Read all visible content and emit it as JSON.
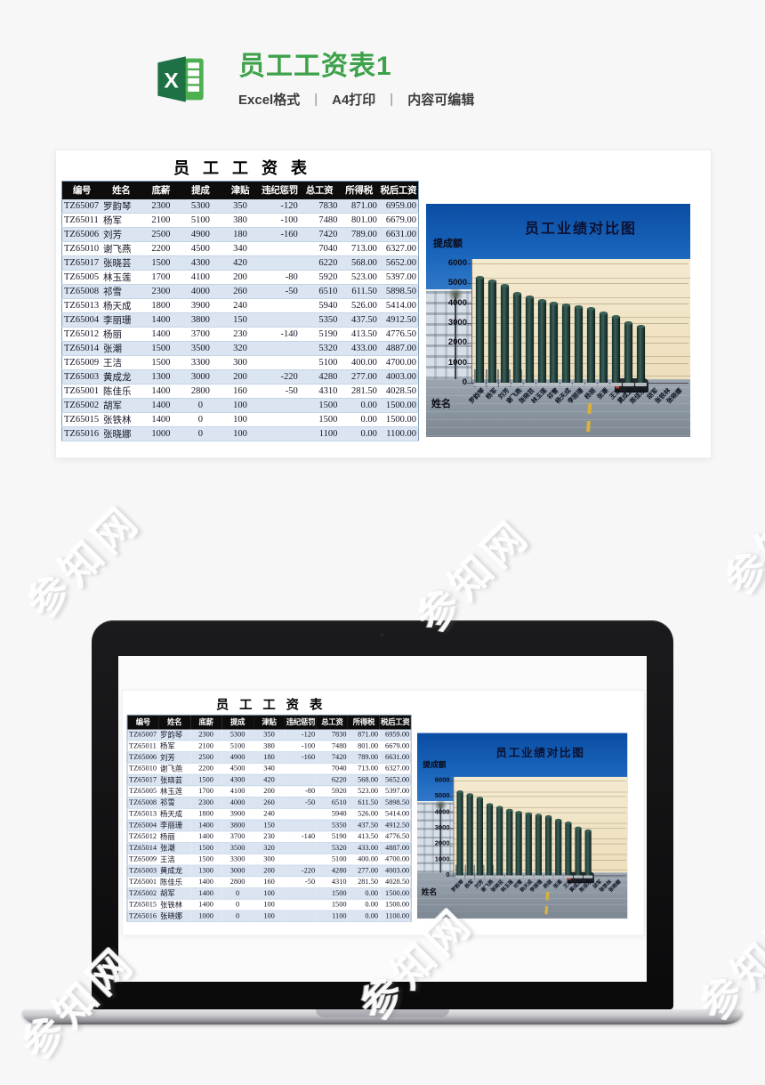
{
  "page": {
    "watermark_text": "参知网",
    "background": "#f7f7f8"
  },
  "header": {
    "title": "员工工资表1",
    "title_color": "#3ea24b",
    "subtitle_parts": [
      "Excel格式",
      "A4打印",
      "内容可编辑"
    ],
    "separator": "|",
    "excel_icon": "excel-logo"
  },
  "sheet": {
    "title": "员工工资表",
    "columns": [
      "编号",
      "姓名",
      "底薪",
      "提成",
      "津贴",
      "违纪惩罚",
      "总工资",
      "所得税",
      "税后工资"
    ],
    "header_bg": "#0d0d0d",
    "row_alt_bg": "#dbe5f1",
    "rows": [
      [
        "TZ65007",
        "罗韵琴",
        "2300",
        "5300",
        "350",
        "-120",
        "7830",
        "871.00",
        "6959.00"
      ],
      [
        "TZ65011",
        "杨军",
        "2100",
        "5100",
        "380",
        "-100",
        "7480",
        "801.00",
        "6679.00"
      ],
      [
        "TZ65006",
        "刘芳",
        "2500",
        "4900",
        "180",
        "-160",
        "7420",
        "789.00",
        "6631.00"
      ],
      [
        "TZ65010",
        "谢飞燕",
        "2200",
        "4500",
        "340",
        "",
        "7040",
        "713.00",
        "6327.00"
      ],
      [
        "TZ65017",
        "张晓芸",
        "1500",
        "4300",
        "420",
        "",
        "6220",
        "568.00",
        "5652.00"
      ],
      [
        "TZ65005",
        "林玉莲",
        "1700",
        "4100",
        "200",
        "-80",
        "5920",
        "523.00",
        "5397.00"
      ],
      [
        "TZ65008",
        "祁雪",
        "2300",
        "4000",
        "260",
        "-50",
        "6510",
        "611.50",
        "5898.50"
      ],
      [
        "TZ65013",
        "杨天成",
        "1800",
        "3900",
        "240",
        "",
        "5940",
        "526.00",
        "5414.00"
      ],
      [
        "TZ65004",
        "李丽珊",
        "1400",
        "3800",
        "150",
        "",
        "5350",
        "437.50",
        "4912.50"
      ],
      [
        "TZ65012",
        "杨丽",
        "1400",
        "3700",
        "230",
        "-140",
        "5190",
        "413.50",
        "4776.50"
      ],
      [
        "TZ65014",
        "张潮",
        "1500",
        "3500",
        "320",
        "",
        "5320",
        "433.00",
        "4887.00"
      ],
      [
        "TZ65009",
        "王洁",
        "1500",
        "3300",
        "300",
        "",
        "5100",
        "400.00",
        "4700.00"
      ],
      [
        "TZ65003",
        "黄成龙",
        "1300",
        "3000",
        "200",
        "-220",
        "4280",
        "277.00",
        "4003.00"
      ],
      [
        "TZ65001",
        "陈佳乐",
        "1400",
        "2800",
        "160",
        "-50",
        "4310",
        "281.50",
        "4028.50"
      ],
      [
        "TZ65002",
        "胡军",
        "1400",
        "0",
        "100",
        "",
        "1500",
        "0.00",
        "1500.00"
      ],
      [
        "TZ65015",
        "张铁林",
        "1400",
        "0",
        "100",
        "",
        "1500",
        "0.00",
        "1500.00"
      ],
      [
        "TZ65016",
        "张晓娜",
        "1000",
        "0",
        "100",
        "",
        "1100",
        "0.00",
        "1100.00"
      ]
    ]
  },
  "chart_data": {
    "type": "bar",
    "title": "员工业绩对比图",
    "ylabel": "提成额",
    "xlabel": "姓名",
    "categories": [
      "罗韵琴",
      "杨军",
      "刘芳",
      "谢飞燕",
      "张晓芸",
      "林玉莲",
      "祁雪",
      "杨天成",
      "李丽珊",
      "杨丽",
      "张潮",
      "王洁",
      "黄成龙",
      "陈佳乐",
      "胡军",
      "张铁林",
      "张晓娜"
    ],
    "values": [
      5300,
      5100,
      4900,
      4500,
      4300,
      4100,
      4000,
      3900,
      3800,
      3700,
      3500,
      3300,
      3000,
      2800,
      0,
      0,
      0
    ],
    "yticks": [
      6000,
      5000,
      4000,
      3000,
      2000,
      1000,
      0
    ],
    "ylim": [
      0,
      6000
    ],
    "grid": true,
    "legend": "none",
    "bar_color": "#1d3a33",
    "background": "office-building-plaza-photo"
  }
}
